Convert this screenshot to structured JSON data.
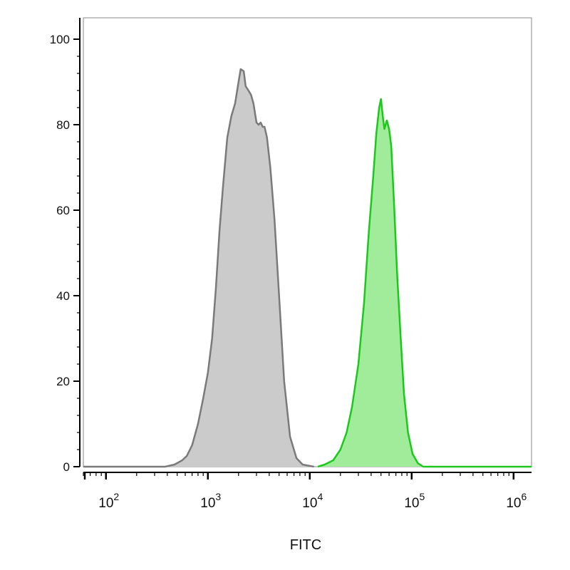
{
  "chart_data": {
    "type": "area",
    "title": "",
    "xlabel": "FITC",
    "ylabel": "",
    "x_scale": "log",
    "xlim": [
      60,
      1500000
    ],
    "ylim": [
      0,
      105
    ],
    "y_ticks": [
      0,
      20,
      40,
      60,
      80,
      100
    ],
    "y_tick_labels": [
      "0",
      "20",
      "40",
      "60",
      "80",
      "100"
    ],
    "x_ticks": [
      {
        "value": 100,
        "base": "10",
        "exp": "2"
      },
      {
        "value": 1000,
        "base": "10",
        "exp": "3"
      },
      {
        "value": 10000,
        "base": "10",
        "exp": "4"
      },
      {
        "value": 100000,
        "base": "10",
        "exp": "5"
      },
      {
        "value": 1000000,
        "base": "10",
        "exp": "6"
      }
    ],
    "grid": false,
    "legend": "none",
    "series": [
      {
        "fill_color": "#cbcbcb",
        "line_color": "#7a7a7a",
        "points": [
          [
            60,
            0
          ],
          [
            380,
            0
          ],
          [
            470,
            0.5
          ],
          [
            560,
            1.5
          ],
          [
            620,
            2.5
          ],
          [
            700,
            5
          ],
          [
            800,
            10
          ],
          [
            900,
            16
          ],
          [
            1000,
            22
          ],
          [
            1100,
            30
          ],
          [
            1200,
            42
          ],
          [
            1300,
            55
          ],
          [
            1400,
            65
          ],
          [
            1550,
            77
          ],
          [
            1700,
            82
          ],
          [
            1850,
            85
          ],
          [
            2000,
            90
          ],
          [
            2100,
            93
          ],
          [
            2250,
            92.5
          ],
          [
            2350,
            89
          ],
          [
            2500,
            88
          ],
          [
            2650,
            87
          ],
          [
            2800,
            85
          ],
          [
            3000,
            80.5
          ],
          [
            3150,
            80
          ],
          [
            3300,
            80.5
          ],
          [
            3450,
            79.5
          ],
          [
            3600,
            79.5
          ],
          [
            3800,
            77
          ],
          [
            4100,
            70
          ],
          [
            4500,
            58
          ],
          [
            5000,
            40
          ],
          [
            5600,
            20
          ],
          [
            6400,
            7
          ],
          [
            7400,
            2
          ],
          [
            8500,
            0.5
          ],
          [
            11000,
            0
          ]
        ]
      },
      {
        "fill_color": "#a0ec9a",
        "line_color": "#1cc81c",
        "points": [
          [
            12000,
            0
          ],
          [
            14000,
            0.5
          ],
          [
            17000,
            1.5
          ],
          [
            20000,
            4
          ],
          [
            23000,
            8
          ],
          [
            26000,
            14
          ],
          [
            30000,
            24
          ],
          [
            34000,
            38
          ],
          [
            38000,
            55
          ],
          [
            42000,
            68
          ],
          [
            45000,
            78
          ],
          [
            48000,
            84
          ],
          [
            50000,
            86
          ],
          [
            52000,
            82
          ],
          [
            54000,
            79
          ],
          [
            57000,
            81
          ],
          [
            60000,
            79
          ],
          [
            63000,
            75
          ],
          [
            67000,
            62
          ],
          [
            72000,
            45
          ],
          [
            78000,
            30
          ],
          [
            84000,
            17
          ],
          [
            92000,
            8
          ],
          [
            102000,
            3
          ],
          [
            115000,
            0.8
          ],
          [
            130000,
            0
          ],
          [
            1500000,
            0
          ]
        ]
      }
    ]
  }
}
